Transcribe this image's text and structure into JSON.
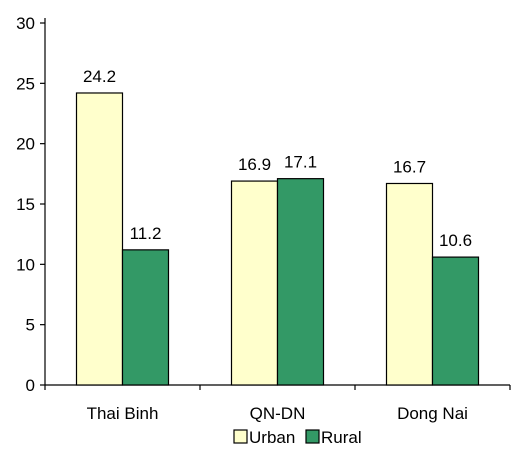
{
  "chart_data": {
    "type": "bar",
    "title": "",
    "xlabel": "",
    "ylabel": "",
    "categories": [
      "Thai Binh",
      "QN-DN",
      "Dong Nai"
    ],
    "series": [
      {
        "name": "Urban",
        "values": [
          24.2,
          16.9,
          16.7
        ],
        "color": "#FFFFCC"
      },
      {
        "name": "Rural",
        "values": [
          11.2,
          17.1,
          10.6
        ],
        "color": "#339966"
      }
    ],
    "data_labels": [
      "24.2",
      "16.9",
      "16.7",
      "11.2",
      "17.1",
      "10.6"
    ],
    "ylim": [
      0,
      30
    ],
    "yticks": [
      0,
      5,
      10,
      15,
      20,
      25,
      30
    ],
    "grid": false,
    "legend": "bottom"
  }
}
